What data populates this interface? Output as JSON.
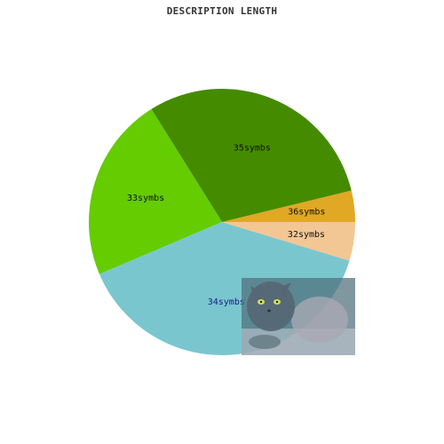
{
  "chart_data": {
    "type": "pie",
    "title": "DESCRIPTION LENGTH",
    "slices": [
      {
        "label": "36symbs",
        "value": 3.8,
        "color": "#e0a825",
        "label_color": "#111111"
      },
      {
        "label": "35symbs",
        "value": 30.1,
        "color": "#458b00",
        "label_color": "#111111"
      },
      {
        "label": "33symbs",
        "value": 22.5,
        "color": "#64cc00",
        "label_color": "#111111"
      },
      {
        "label": "34symbs",
        "value": 38.9,
        "color": "#7ac6cf",
        "label_color": "#1a1a8c"
      },
      {
        "label": "32symbs",
        "value": 4.7,
        "color": "#f2c794",
        "label_color": "#111111"
      }
    ],
    "start_angle_deg": 0,
    "direction": "counterclockwise"
  },
  "overlay_image": {
    "icon": "cat-photo-thumbnail"
  }
}
